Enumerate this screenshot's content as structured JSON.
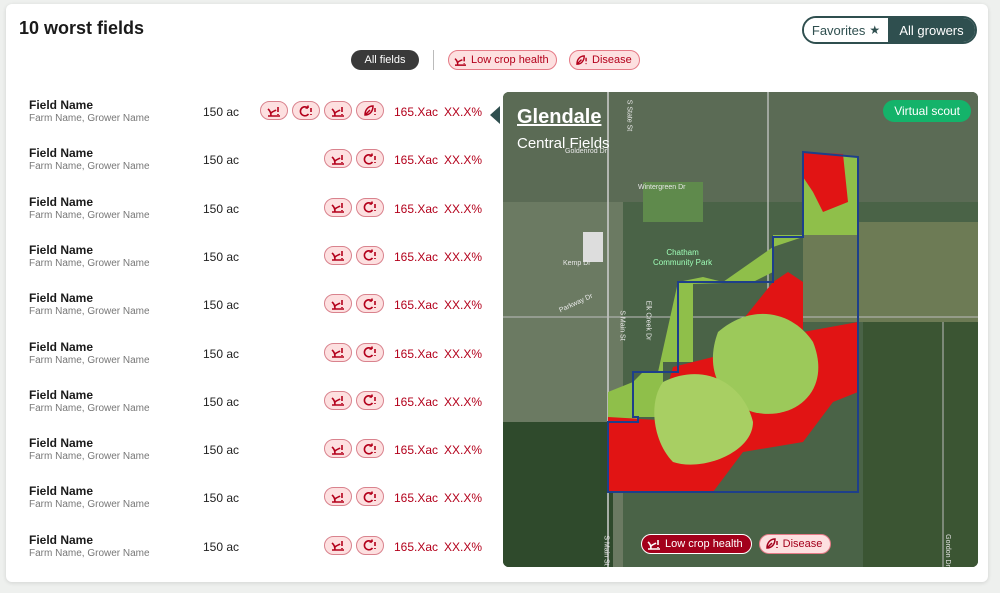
{
  "header": {
    "title": "10 worst fields"
  },
  "toggle": {
    "favorites": "Favorites",
    "all_growers": "All growers",
    "selected": "All growers"
  },
  "filters": {
    "all": "All fields",
    "low_crop_health": "Low crop health",
    "disease": "Disease"
  },
  "fields": [
    {
      "name": "Field Name",
      "sub": "Farm Name, Grower Name",
      "acres": "150 ac",
      "metric": "165.Xac",
      "pct": "XX.X%",
      "icons": [
        "low-crop-health",
        "reinfection",
        "low-crop-health",
        "disease"
      ]
    },
    {
      "name": "Field Name",
      "sub": "Farm Name, Grower Name",
      "acres": "150 ac",
      "metric": "165.Xac",
      "pct": "XX.X%",
      "icons": [
        "low-crop-health",
        "reinfection"
      ]
    },
    {
      "name": "Field Name",
      "sub": "Farm Name, Grower Name",
      "acres": "150 ac",
      "metric": "165.Xac",
      "pct": "XX.X%",
      "icons": [
        "low-crop-health",
        "reinfection"
      ]
    },
    {
      "name": "Field Name",
      "sub": "Farm Name, Grower Name",
      "acres": "150 ac",
      "metric": "165.Xac",
      "pct": "XX.X%",
      "icons": [
        "low-crop-health",
        "reinfection"
      ]
    },
    {
      "name": "Field Name",
      "sub": "Farm Name, Grower Name",
      "acres": "150 ac",
      "metric": "165.Xac",
      "pct": "XX.X%",
      "icons": [
        "low-crop-health",
        "reinfection"
      ]
    },
    {
      "name": "Field Name",
      "sub": "Farm Name, Grower Name",
      "acres": "150 ac",
      "metric": "165.Xac",
      "pct": "XX.X%",
      "icons": [
        "low-crop-health",
        "reinfection"
      ]
    },
    {
      "name": "Field Name",
      "sub": "Farm Name, Grower Name",
      "acres": "150 ac",
      "metric": "165.Xac",
      "pct": "XX.X%",
      "icons": [
        "low-crop-health",
        "reinfection"
      ]
    },
    {
      "name": "Field Name",
      "sub": "Farm Name, Grower Name",
      "acres": "150 ac",
      "metric": "165.Xac",
      "pct": "XX.X%",
      "icons": [
        "low-crop-health",
        "reinfection"
      ]
    },
    {
      "name": "Field Name",
      "sub": "Farm Name, Grower Name",
      "acres": "150 ac",
      "metric": "165.Xac",
      "pct": "XX.X%",
      "icons": [
        "low-crop-health",
        "reinfection"
      ]
    },
    {
      "name": "Field Name",
      "sub": "Farm Name, Grower Name",
      "acres": "150 ac",
      "metric": "165.Xac",
      "pct": "XX.X%",
      "icons": [
        "low-crop-health",
        "reinfection"
      ]
    }
  ],
  "map": {
    "title": "Glendale",
    "subtitle": "Central Fields",
    "virtual_scout": "Virtual scout",
    "park_label_1": "Chatham",
    "park_label_2": "Community Park",
    "roads": [
      "S Main St",
      "Wintergreen Dr",
      "Goldenrod Dr",
      "Kemp Dr",
      "Parkway Dr",
      "Elk Creek Dr",
      "S Main St",
      "Gordon Dr",
      "S State St"
    ],
    "legend": {
      "low": "Low crop health",
      "disease": "Disease"
    }
  },
  "colors": {
    "accent": "#2f4f4f",
    "alert": "#b3001b",
    "alert_bg": "#fde0e0",
    "scout": "#14b36a"
  }
}
